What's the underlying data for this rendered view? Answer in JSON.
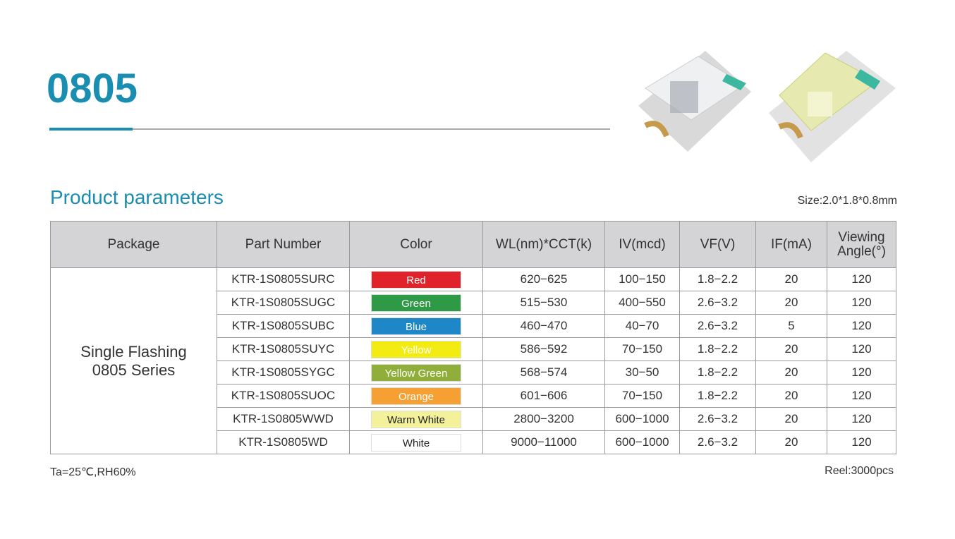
{
  "header": {
    "title": "0805"
  },
  "section": {
    "title": "Product parameters",
    "size": "Size:2.0*1.8*0.8mm"
  },
  "table": {
    "headers": [
      "Package",
      "Part Number",
      "Color",
      "WL(nm)*CCT(k)",
      "IV(mcd)",
      "VF(V)",
      "IF(mA)",
      "Viewing Angle(°)"
    ],
    "package": "Single Flashing 0805 Series",
    "rows": [
      {
        "part": "KTR-1S0805SURC",
        "color": "Red",
        "swatch": "#e0232a",
        "wl": "620−625",
        "iv": "100−150",
        "vf": "1.8−2.2",
        "if": "20",
        "angle": "120"
      },
      {
        "part": "KTR-1S0805SUGC",
        "color": "Green",
        "swatch": "#2f9a45",
        "wl": "515−530",
        "iv": "400−550",
        "vf": "2.6−3.2",
        "if": "20",
        "angle": "120"
      },
      {
        "part": "KTR-1S0805SUBC",
        "color": "Blue",
        "swatch": "#1d87c8",
        "wl": "460−470",
        "iv": "40−70",
        "vf": "2.6−3.2",
        "if": "5",
        "angle": "120"
      },
      {
        "part": "KTR-1S0805SUYC",
        "color": "Yellow",
        "swatch": "#f2ec12",
        "wl": "586−592",
        "iv": "70−150",
        "vf": "1.8−2.2",
        "if": "20",
        "angle": "120"
      },
      {
        "part": "KTR-1S0805SYGC",
        "color": "Yellow Green",
        "swatch": "#8fae3a",
        "wl": "568−574",
        "iv": "30−50",
        "vf": "1.8−2.2",
        "if": "20",
        "angle": "120"
      },
      {
        "part": "KTR-1S0805SUOC",
        "color": "Orange",
        "swatch": "#f6a033",
        "wl": "601−606",
        "iv": "70−150",
        "vf": "1.8−2.2",
        "if": "20",
        "angle": "120"
      },
      {
        "part": "KTR-1S0805WWD",
        "color": "Warm White",
        "swatch": "#f3f19a",
        "wl": "2800−3200",
        "iv": "600−1000",
        "vf": "2.6−3.2",
        "if": "20",
        "angle": "120"
      },
      {
        "part": "KTR-1S0805WD",
        "color": "White",
        "swatch": "#ffffff",
        "wl": "9000−11000",
        "iv": "600−1000",
        "vf": "2.6−3.2",
        "if": "20",
        "angle": "120"
      }
    ]
  },
  "footer": {
    "left": "Ta=25℃,RH60%",
    "right": "Reel:3000pcs"
  }
}
